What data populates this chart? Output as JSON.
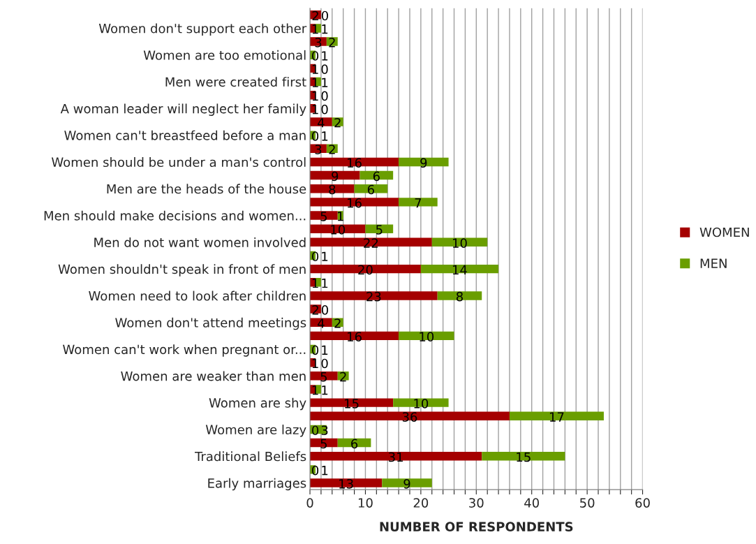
{
  "chart_data": {
    "type": "bar",
    "orientation": "horizontal",
    "stacked": true,
    "data_labels": true,
    "xlabel": "NUMBER OF RESPONDENTS",
    "categories": [
      null,
      "Women don't support each other",
      null,
      "Women are too emotional",
      null,
      "Men were created first",
      null,
      "A woman leader will neglect her family",
      null,
      "Women can't breastfeed before a man",
      null,
      "Women should be under a man's control",
      null,
      "Men are the heads of the house",
      null,
      "Men should make decisions and women...",
      null,
      "Men do not want women involved",
      null,
      "Women shouldn't speak in front of men",
      null,
      "Women need to look after children",
      null,
      "Women don't attend meetings",
      null,
      "Women can't work when pregnant or...",
      null,
      "Women are weaker than men",
      null,
      "Women are shy",
      null,
      "Women are lazy",
      null,
      "Traditional Beliefs",
      null,
      "Early marriages"
    ],
    "series": [
      {
        "name": "WOMEN",
        "color": "#a50000",
        "values": [
          2,
          1,
          3,
          0,
          1,
          1,
          1,
          1,
          4,
          0,
          3,
          16,
          9,
          8,
          16,
          5,
          10,
          22,
          0,
          20,
          1,
          23,
          2,
          4,
          16,
          0,
          1,
          5,
          1,
          15,
          36,
          0,
          5,
          31,
          0,
          13
        ]
      },
      {
        "name": "MEN",
        "color": "#6a9e00",
        "values": [
          0,
          1,
          2,
          1,
          0,
          1,
          0,
          0,
          2,
          1,
          2,
          9,
          6,
          6,
          7,
          1,
          5,
          10,
          1,
          14,
          1,
          8,
          0,
          2,
          10,
          1,
          0,
          2,
          1,
          10,
          17,
          3,
          6,
          15,
          1,
          9
        ]
      }
    ],
    "xlim": [
      0,
      60
    ],
    "xticks": [
      0,
      {
        "value": 2,
        "label": null
      },
      {
        "value": 4,
        "label": null
      },
      {
        "value": 6,
        "label": null
      },
      {
        "value": 8,
        "label": null
      },
      10,
      {
        "value": 12,
        "label": null
      },
      {
        "value": 14,
        "label": null
      },
      {
        "value": 16,
        "label": null
      },
      {
        "value": 18,
        "label": null
      },
      20,
      {
        "value": 22,
        "label": null
      },
      {
        "value": 24,
        "label": null
      },
      {
        "value": 26,
        "label": null
      },
      {
        "value": 28,
        "label": null
      },
      30,
      {
        "value": 32,
        "label": null
      },
      {
        "value": 34,
        "label": null
      },
      {
        "value": 36,
        "label": null
      },
      {
        "value": 38,
        "label": null
      },
      40,
      {
        "value": 42,
        "label": null
      },
      {
        "value": 44,
        "label": null
      },
      {
        "value": 46,
        "label": null
      },
      {
        "value": 48,
        "label": null
      },
      50,
      {
        "value": 52,
        "label": null
      },
      {
        "value": 54,
        "label": null
      },
      {
        "value": 56,
        "label": null
      },
      {
        "value": 58,
        "label": null
      },
      60
    ],
    "grid": "x",
    "legend": "right"
  }
}
